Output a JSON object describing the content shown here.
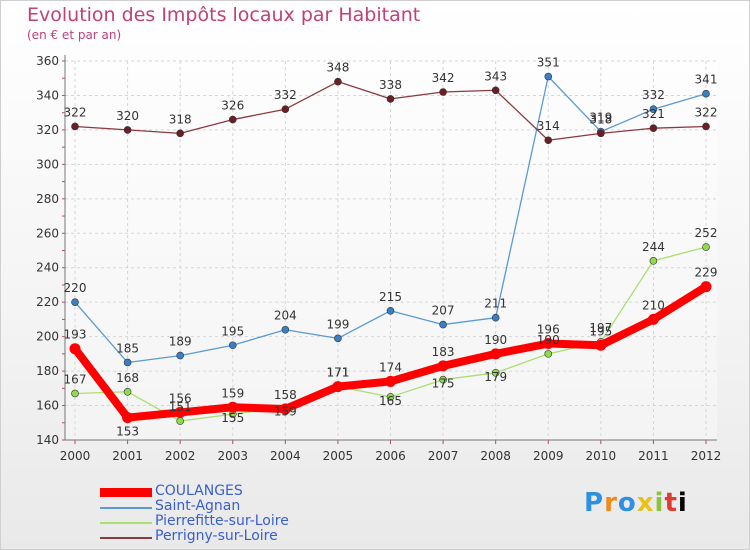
{
  "title": "Evolution des Impôts locaux par Habitant",
  "subtitle": "(en € et par an)",
  "brand": "Proxiti",
  "chart_data": {
    "type": "line",
    "title": "Evolution des Impôts locaux par Habitant",
    "subtitle": "(en € et par an)",
    "xlabel": "",
    "ylabel": "",
    "ylim": [
      140,
      360
    ],
    "yticks": [
      140,
      160,
      180,
      200,
      220,
      240,
      260,
      280,
      300,
      320,
      340,
      360
    ],
    "grid": true,
    "legend_position": "bottom-left",
    "categories": [
      "2000",
      "2001",
      "2002",
      "2003",
      "2004",
      "2005",
      "2006",
      "2007",
      "2008",
      "2009",
      "2010",
      "2011",
      "2012"
    ],
    "series": [
      {
        "name": "COULANGES",
        "color": "#ff0000",
        "values": [
          193,
          153,
          156,
          159,
          158,
          171,
          174,
          183,
          190,
          196,
          195,
          210,
          229
        ]
      },
      {
        "name": "Saint-Agnan",
        "color": "#3a7fc4",
        "values": [
          220,
          185,
          189,
          195,
          204,
          199,
          215,
          207,
          211,
          351,
          319,
          332,
          341
        ]
      },
      {
        "name": "Pierrefitte-sur-Loire",
        "color": "#8fdc4a",
        "values": [
          167,
          168,
          151,
          155,
          159,
          171,
          165,
          175,
          179,
          190,
          197,
          244,
          252
        ]
      },
      {
        "name": "Perrigny-sur-Loire",
        "color": "#7a2a30",
        "values": [
          322,
          320,
          318,
          326,
          332,
          348,
          338,
          342,
          343,
          314,
          318,
          321,
          322
        ]
      }
    ]
  }
}
